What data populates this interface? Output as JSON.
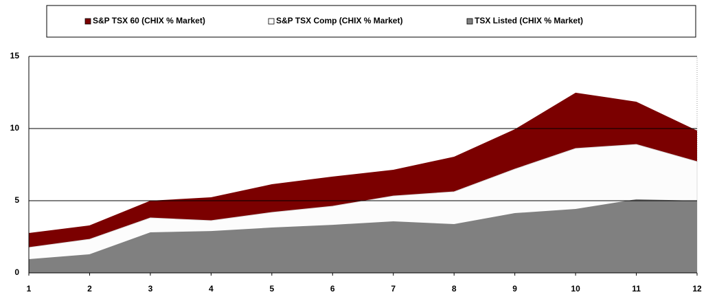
{
  "chart_data": {
    "type": "area",
    "x": [
      1,
      2,
      3,
      4,
      5,
      6,
      7,
      8,
      9,
      10,
      11,
      12
    ],
    "xlim": [
      1,
      12
    ],
    "xticks": [
      1,
      2,
      3,
      4,
      5,
      6,
      7,
      8,
      9,
      10,
      11,
      12
    ],
    "ylim": [
      0,
      15
    ],
    "yticks": [
      0,
      5,
      10,
      15
    ],
    "grid": true,
    "legend": "top",
    "series": [
      {
        "name": "S&P TSX 60 (CHIX % Market)",
        "color": "#7b0000",
        "values": [
          2.76,
          3.29,
          5.0,
          5.24,
          6.14,
          6.67,
          7.14,
          8.05,
          9.95,
          12.48,
          11.86,
          9.86
        ]
      },
      {
        "name": "S&P TSX Comp (CHIX % Market)",
        "color": "#fcfcfc",
        "values": [
          1.76,
          2.33,
          3.81,
          3.62,
          4.19,
          4.62,
          5.33,
          5.62,
          7.19,
          8.62,
          8.9,
          7.71
        ]
      },
      {
        "name": "TSX Listed (CHIX % Market)",
        "color": "#808080",
        "values": [
          0.95,
          1.29,
          2.81,
          2.9,
          3.14,
          3.33,
          3.57,
          3.38,
          4.14,
          4.43,
          5.1,
          5.0
        ]
      }
    ]
  }
}
